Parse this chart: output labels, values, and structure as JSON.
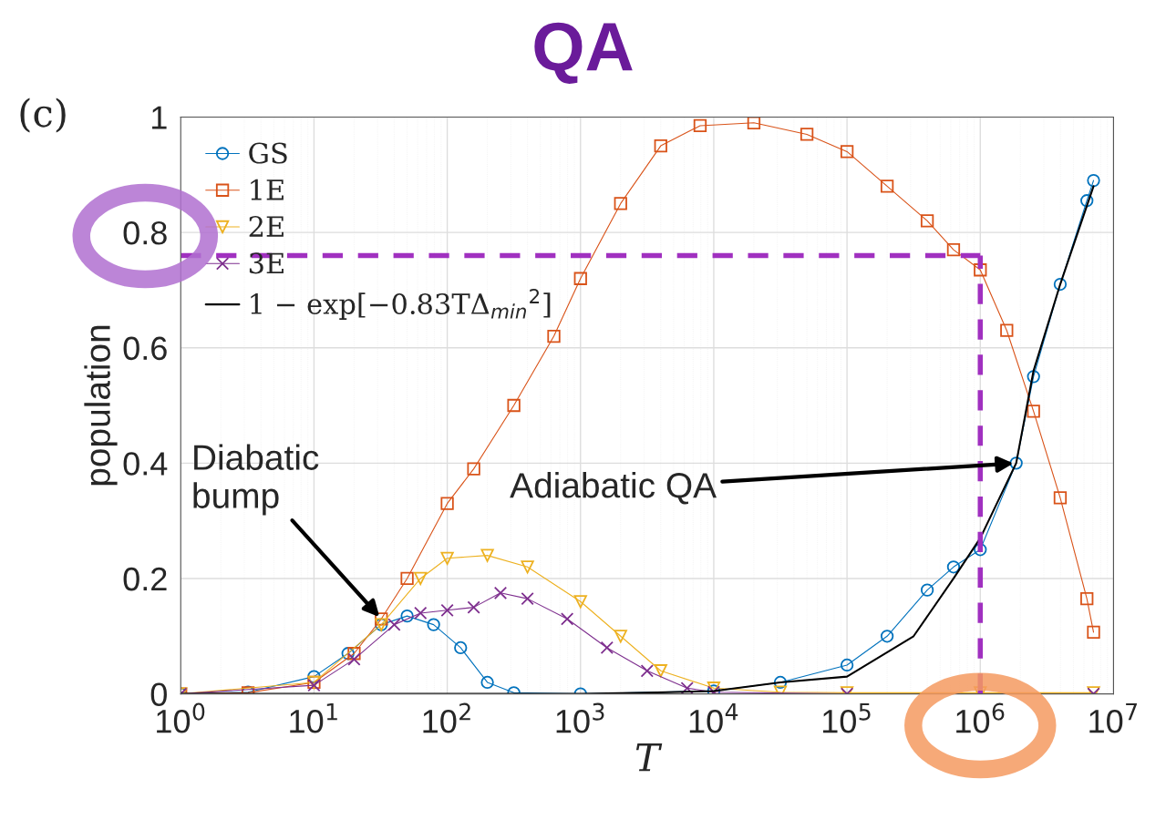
{
  "chart_data": {
    "type": "line",
    "title": "QA",
    "xlabel": "T",
    "ylabel": "population",
    "log": "x",
    "grid": true,
    "legend": "top left",
    "xlim": [
      1,
      10000000
    ],
    "ylim": [
      0,
      1
    ],
    "xticks": [
      {
        "value": 1,
        "label": "10$^{0}$"
      },
      {
        "value": 10,
        "label": "10$^{1}$"
      },
      {
        "value": 100,
        "label": "10$^{2}$"
      },
      {
        "value": 1000,
        "label": "10$^{3}$"
      },
      {
        "value": 10000,
        "label": "10$^{4}$"
      },
      {
        "value": 100000,
        "label": "10$^{5}$"
      },
      {
        "value": 1000000,
        "label": "10$^{6}$"
      },
      {
        "value": 10000000,
        "label": "10$^{7}$"
      }
    ],
    "yticks": [
      0,
      0.2,
      0.4,
      0.6,
      0.8,
      1
    ],
    "series": [
      {
        "name": "GS",
        "color": "#0072bd",
        "marker": "circle",
        "x": [
          1,
          3.2,
          10,
          18,
          32,
          50,
          79,
          126,
          200,
          316,
          1000,
          10000,
          31600,
          100000,
          200000,
          400000,
          630000,
          1000000,
          1860000,
          2510000,
          3980000,
          6310000,
          7080000
        ],
        "values": [
          0,
          0.003,
          0.03,
          0.07,
          0.12,
          0.135,
          0.12,
          0.08,
          0.02,
          0.002,
          0,
          0.005,
          0.02,
          0.05,
          0.1,
          0.18,
          0.22,
          0.25,
          0.4,
          0.55,
          0.71,
          0.855,
          0.89
        ]
      },
      {
        "name": "1E",
        "color": "#d95319",
        "marker": "square",
        "x": [
          1,
          3.2,
          10,
          20,
          32,
          50,
          100,
          158,
          316,
          631,
          1000,
          2000,
          4000,
          7900,
          20000,
          50000,
          100000,
          200000,
          400000,
          630000,
          1000000,
          1580000,
          2510000,
          3980000,
          6310000,
          7080000
        ],
        "values": [
          0,
          0.002,
          0.02,
          0.07,
          0.13,
          0.2,
          0.33,
          0.39,
          0.5,
          0.62,
          0.72,
          0.85,
          0.95,
          0.985,
          0.99,
          0.97,
          0.94,
          0.88,
          0.82,
          0.77,
          0.735,
          0.63,
          0.49,
          0.34,
          0.165,
          0.107
        ]
      },
      {
        "name": "2E",
        "color": "#edb120",
        "marker": "triangle",
        "x": [
          1,
          10,
          32,
          63,
          100,
          200,
          400,
          1000,
          2000,
          4000,
          10000,
          31600,
          100000,
          1000000,
          7080000
        ],
        "values": [
          0,
          0.02,
          0.12,
          0.2,
          0.235,
          0.24,
          0.22,
          0.16,
          0.1,
          0.04,
          0.01,
          0.003,
          0.002,
          0.002,
          0.002
        ]
      },
      {
        "name": "3E",
        "color": "#7e2f8e",
        "marker": "cross",
        "x": [
          1,
          10,
          20,
          40,
          63,
          100,
          158,
          251,
          400,
          794,
          1580,
          3160,
          6310,
          10000,
          100000,
          7080000
        ],
        "values": [
          0,
          0.015,
          0.06,
          0.12,
          0.14,
          0.145,
          0.15,
          0.175,
          0.165,
          0.13,
          0.08,
          0.04,
          0.01,
          0.003,
          0,
          0
        ]
      },
      {
        "name": "1 − exp[−0.83TΔ$_{min}$$^{2}$]",
        "color": "#000000",
        "marker": "none",
        "x": [
          1,
          1000,
          3160,
          10000,
          31600,
          100000,
          316000,
          630000,
          1000000,
          1860000,
          2510000,
          3980000,
          7080000
        ],
        "values": [
          0,
          0,
          0.002,
          0.005,
          0.02,
          0.03,
          0.1,
          0.2,
          0.27,
          0.4,
          0.56,
          0.71,
          0.88
        ]
      }
    ],
    "ref_lines": [
      {
        "axis": "y",
        "value": 0.76,
        "color": "#a030c0",
        "line_style": "dashed"
      },
      {
        "axis": "x",
        "value": 1000000,
        "color": "#a030c0",
        "line_style": "dashed"
      }
    ],
    "annotations": [
      "(c)",
      {
        "text": "Diabatic\nbump",
        "x": 32,
        "y": 0.13
      },
      {
        "text": "Adiabatic QA",
        "x": 1860000,
        "y": 0.4
      }
    ]
  }
}
